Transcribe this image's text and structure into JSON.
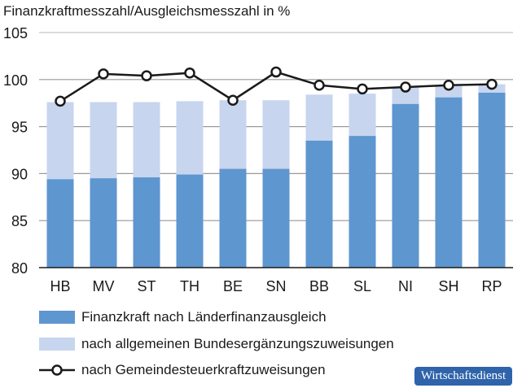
{
  "chart_data": {
    "type": "bar",
    "title": "Finanzkraftmesszahl/Ausgleichsmesszahl in %",
    "categories": [
      "HB",
      "MV",
      "ST",
      "TH",
      "BE",
      "SN",
      "BB",
      "SL",
      "NI",
      "SH",
      "RP"
    ],
    "ylim": [
      80,
      105
    ],
    "yticks": [
      80,
      85,
      90,
      95,
      100,
      105
    ],
    "grid": true,
    "legend_placement": "bottom",
    "series": [
      {
        "name": "Finanzkraft nach Länderfinanzausgleich",
        "kind": "bar",
        "color": "#5e96cf",
        "values": [
          89.4,
          89.5,
          89.6,
          89.9,
          90.5,
          90.5,
          93.5,
          94.0,
          97.4,
          98.1,
          98.6
        ]
      },
      {
        "name": "nach allgemeinen Bundesergänzungszuweisungen",
        "kind": "bar",
        "color": "#c7d5ef",
        "values": [
          97.6,
          97.6,
          97.6,
          97.7,
          97.8,
          97.8,
          98.4,
          98.5,
          99.2,
          99.3,
          99.5
        ]
      },
      {
        "name": "nach Gemeindesteuerkraftzuweisungen",
        "kind": "line",
        "color": "#1a1a1a",
        "values": [
          97.7,
          100.6,
          100.4,
          100.7,
          97.8,
          100.8,
          99.4,
          99.0,
          99.2,
          99.4,
          99.5
        ]
      }
    ]
  },
  "badge": "Wirtschaftsdienst"
}
